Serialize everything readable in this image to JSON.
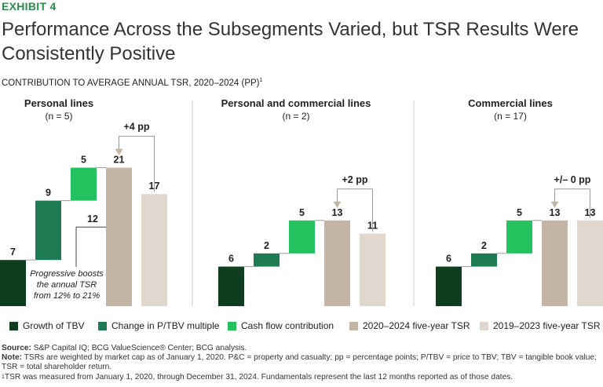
{
  "exhibit": "EXHIBIT 4",
  "title": "Performance Across the Subsegments Varied, but TSR Results Were Consistently Positive",
  "subtitle": "CONTRIBUTION TO AVERAGE ANNUAL TSR, 2020–2024 (PP)",
  "subtitle_sup": "1",
  "colors": {
    "growth_tbv": "#0f3d1f",
    "change_ptbv": "#1d7a52",
    "cash_flow": "#25c15e",
    "tsr_2020": "#c4b4a3",
    "tsr_2019": "#e0d8ce",
    "divider": "#cfcfcf",
    "arrow": "#c4b4a3"
  },
  "chart_data": [
    {
      "type": "bar",
      "subtype": "waterfall",
      "panel_title": "Personal lines",
      "n_label": "(n = 5)",
      "bars": [
        {
          "key": "growth_tbv",
          "label": "7",
          "value": 7,
          "base": 0
        },
        {
          "key": "change_ptbv",
          "label": "9",
          "value": 9,
          "base": 7
        },
        {
          "key": "cash_flow",
          "label": "5",
          "value": 5,
          "base": 16
        },
        {
          "key": "tsr_2020",
          "label": "21",
          "value": 21,
          "base": 0
        },
        {
          "key": "tsr_2019",
          "label": "17",
          "value": 17,
          "base": 0
        }
      ],
      "delta_label": "+4 pp",
      "annotation_value": "12",
      "annotation_text": [
        "Progressive boosts",
        "the annual TSR",
        "from 12% to 21%"
      ]
    },
    {
      "type": "bar",
      "subtype": "waterfall",
      "panel_title": "Personal and commercial lines",
      "n_label": "(n = 2)",
      "bars": [
        {
          "key": "growth_tbv",
          "label": "6",
          "value": 6,
          "base": 0
        },
        {
          "key": "change_ptbv",
          "label": "2",
          "value": 2,
          "base": 6
        },
        {
          "key": "cash_flow",
          "label": "5",
          "value": 5,
          "base": 8
        },
        {
          "key": "tsr_2020",
          "label": "13",
          "value": 13,
          "base": 0
        },
        {
          "key": "tsr_2019",
          "label": "11",
          "value": 11,
          "base": 0
        }
      ],
      "delta_label": "+2 pp"
    },
    {
      "type": "bar",
      "subtype": "waterfall",
      "panel_title": "Commercial lines",
      "n_label": "(n = 17)",
      "bars": [
        {
          "key": "growth_tbv",
          "label": "6",
          "value": 6,
          "base": 0
        },
        {
          "key": "change_ptbv",
          "label": "2",
          "value": 2,
          "base": 6
        },
        {
          "key": "cash_flow",
          "label": "5",
          "value": 5,
          "base": 8
        },
        {
          "key": "tsr_2020",
          "label": "13",
          "value": 13,
          "base": 0
        },
        {
          "key": "tsr_2019",
          "label": "13",
          "value": 13,
          "base": 0
        }
      ],
      "delta_label": "+/– 0 pp"
    }
  ],
  "legend": [
    {
      "key": "growth_tbv",
      "label": "Growth of TBV"
    },
    {
      "key": "change_ptbv",
      "label": "Change in P/TBV multiple"
    },
    {
      "key": "cash_flow",
      "label": "Cash flow contribution"
    },
    {
      "key": "tsr_2020",
      "label": "2020–2024 five-year TSR"
    },
    {
      "key": "tsr_2019",
      "label": "2019–2023 five-year TSR"
    }
  ],
  "footnotes": {
    "source_label": "Source:",
    "source_text": " S&P Capital IQ; BCG ValueScience® Center; BCG analysis.",
    "note_label": "Note:",
    "note_text": " TSRs are weighted by market cap as of January 1, 2020. P&C = property and casualty; pp = percentage points; P/TBV = price to TBV; TBV = tangible book value; TSR = total shareholder return.",
    "fn1_sup": "1",
    "fn1_text": "TSR was measured from January 1, 2020, through December 31, 2024. Fundamentals represent the last 12 months reported as of those dates."
  }
}
